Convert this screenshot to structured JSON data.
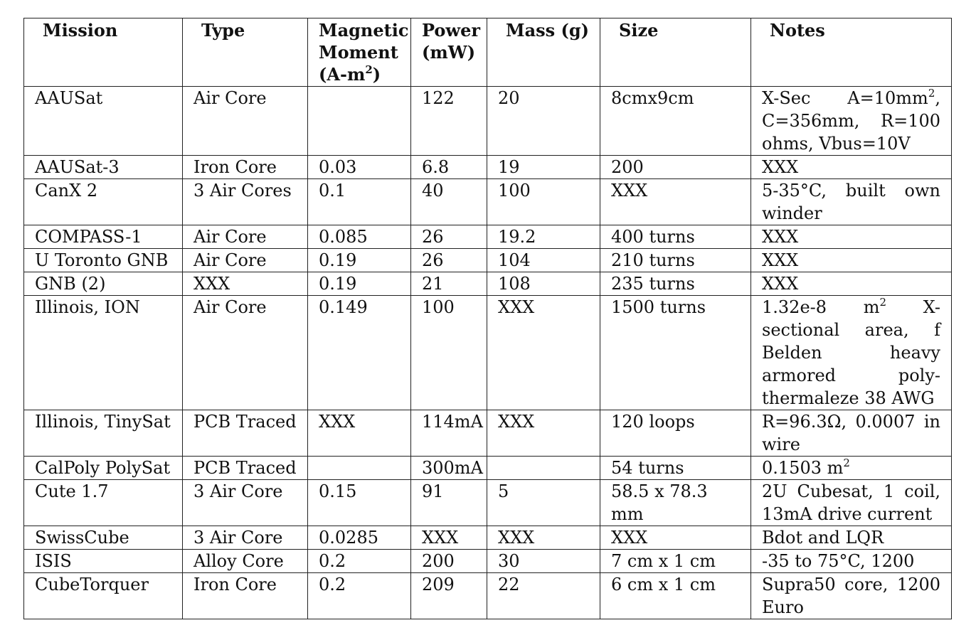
{
  "headers": {
    "mission": "Mission",
    "type": "Type",
    "magnetic_moment_line1": "Magnetic",
    "magnetic_moment_line2": "Moment",
    "magnetic_moment_line3": "(A-m",
    "magnetic_moment_sup": "2",
    "magnetic_moment_close": ")",
    "power_line1": "Power",
    "power_line2": "(mW)",
    "mass": "Mass (g)",
    "size": "Size",
    "notes": "Notes"
  },
  "rows": [
    {
      "mission": "AAUSat",
      "type": "Air Core",
      "moment": "",
      "power": "122",
      "mass": "20",
      "size": "8cmx9cm",
      "notes_pre": "X-Sec A=10mm",
      "notes_sup": "2",
      "notes_post": ", C=356mm, R=100 ohms, Vbus=10V"
    },
    {
      "mission": "AAUSat-3",
      "type": "Iron Core",
      "moment": "0.03",
      "power": "6.8",
      "mass": "19",
      "size": "200",
      "notes_pre": "XXX",
      "notes_sup": "",
      "notes_post": ""
    },
    {
      "mission": "CanX 2",
      "type": "3 Air Cores",
      "moment": "0.1",
      "power": "40",
      "mass": "100",
      "size": "XXX",
      "notes_pre": "5-35°C, built own winder",
      "notes_sup": "",
      "notes_post": ""
    },
    {
      "mission": "COMPASS-1",
      "type": "Air Core",
      "moment": "0.085",
      "power": "26",
      "mass": "19.2",
      "size": "400 turns",
      "notes_pre": "XXX",
      "notes_sup": "",
      "notes_post": ""
    },
    {
      "mission": "U Toronto GNB",
      "type": "Air Core",
      "moment": "0.19",
      "power": "26",
      "mass": "104",
      "size": "210 turns",
      "notes_pre": "XXX",
      "notes_sup": "",
      "notes_post": ""
    },
    {
      "mission": "GNB (2)",
      "type": "XXX",
      "moment": "0.19",
      "power": "21",
      "mass": "108",
      "size": "235 turns",
      "notes_pre": "XXX",
      "notes_sup": "",
      "notes_post": ""
    },
    {
      "mission": "Illinois, ION",
      "type": "Air Core",
      "moment": "0.149",
      "power": "100",
      "mass": "XXX",
      "size": "1500 turns",
      "notes_pre": "1.32e-8 m",
      "notes_sup": "2",
      "notes_post": " X-sectional area, f Belden heavy armored poly-thermaleze 38 AWG"
    },
    {
      "mission": "Illinois, TinySat",
      "type": "PCB Traced",
      "moment": "XXX",
      "power": "114mA",
      "mass": "XXX",
      "size": "120 loops",
      "notes_pre": "R=96.3Ω, 0.0007 in wire",
      "notes_sup": "",
      "notes_post": ""
    },
    {
      "mission": "CalPoly PolySat",
      "type": "PCB Traced",
      "moment": "",
      "power": "300mA",
      "mass": "",
      "size": "54 turns",
      "notes_pre": "0.1503 m",
      "notes_sup": "2",
      "notes_post": ""
    },
    {
      "mission": "Cute 1.7",
      "type": "3 Air Core",
      "moment": "0.15",
      "power": "91",
      "mass": "5",
      "size": "58.5 x 78.3 mm",
      "notes_pre": "2U Cubesat, 1 coil, 13mA drive current",
      "notes_sup": "",
      "notes_post": ""
    },
    {
      "mission": "SwissCube",
      "type": "3 Air Core",
      "moment": "0.0285",
      "power": "XXX",
      "mass": "XXX",
      "size": "XXX",
      "notes_pre": "Bdot and LQR",
      "notes_sup": "",
      "notes_post": ""
    },
    {
      "mission": "ISIS",
      "type": "Alloy Core",
      "moment": "0.2",
      "power": "200",
      "mass": "30",
      "size": "7 cm x 1 cm",
      "notes_pre": "-35 to 75°C, 1200",
      "notes_sup": "",
      "notes_post": ""
    },
    {
      "mission": "CubeTorquer",
      "type": "Iron Core",
      "moment": "0.2",
      "power": "209",
      "mass": "22",
      "size": "6 cm x 1 cm",
      "notes_pre": "Supra50 core, 1200 Euro",
      "notes_sup": "",
      "notes_post": ""
    }
  ]
}
